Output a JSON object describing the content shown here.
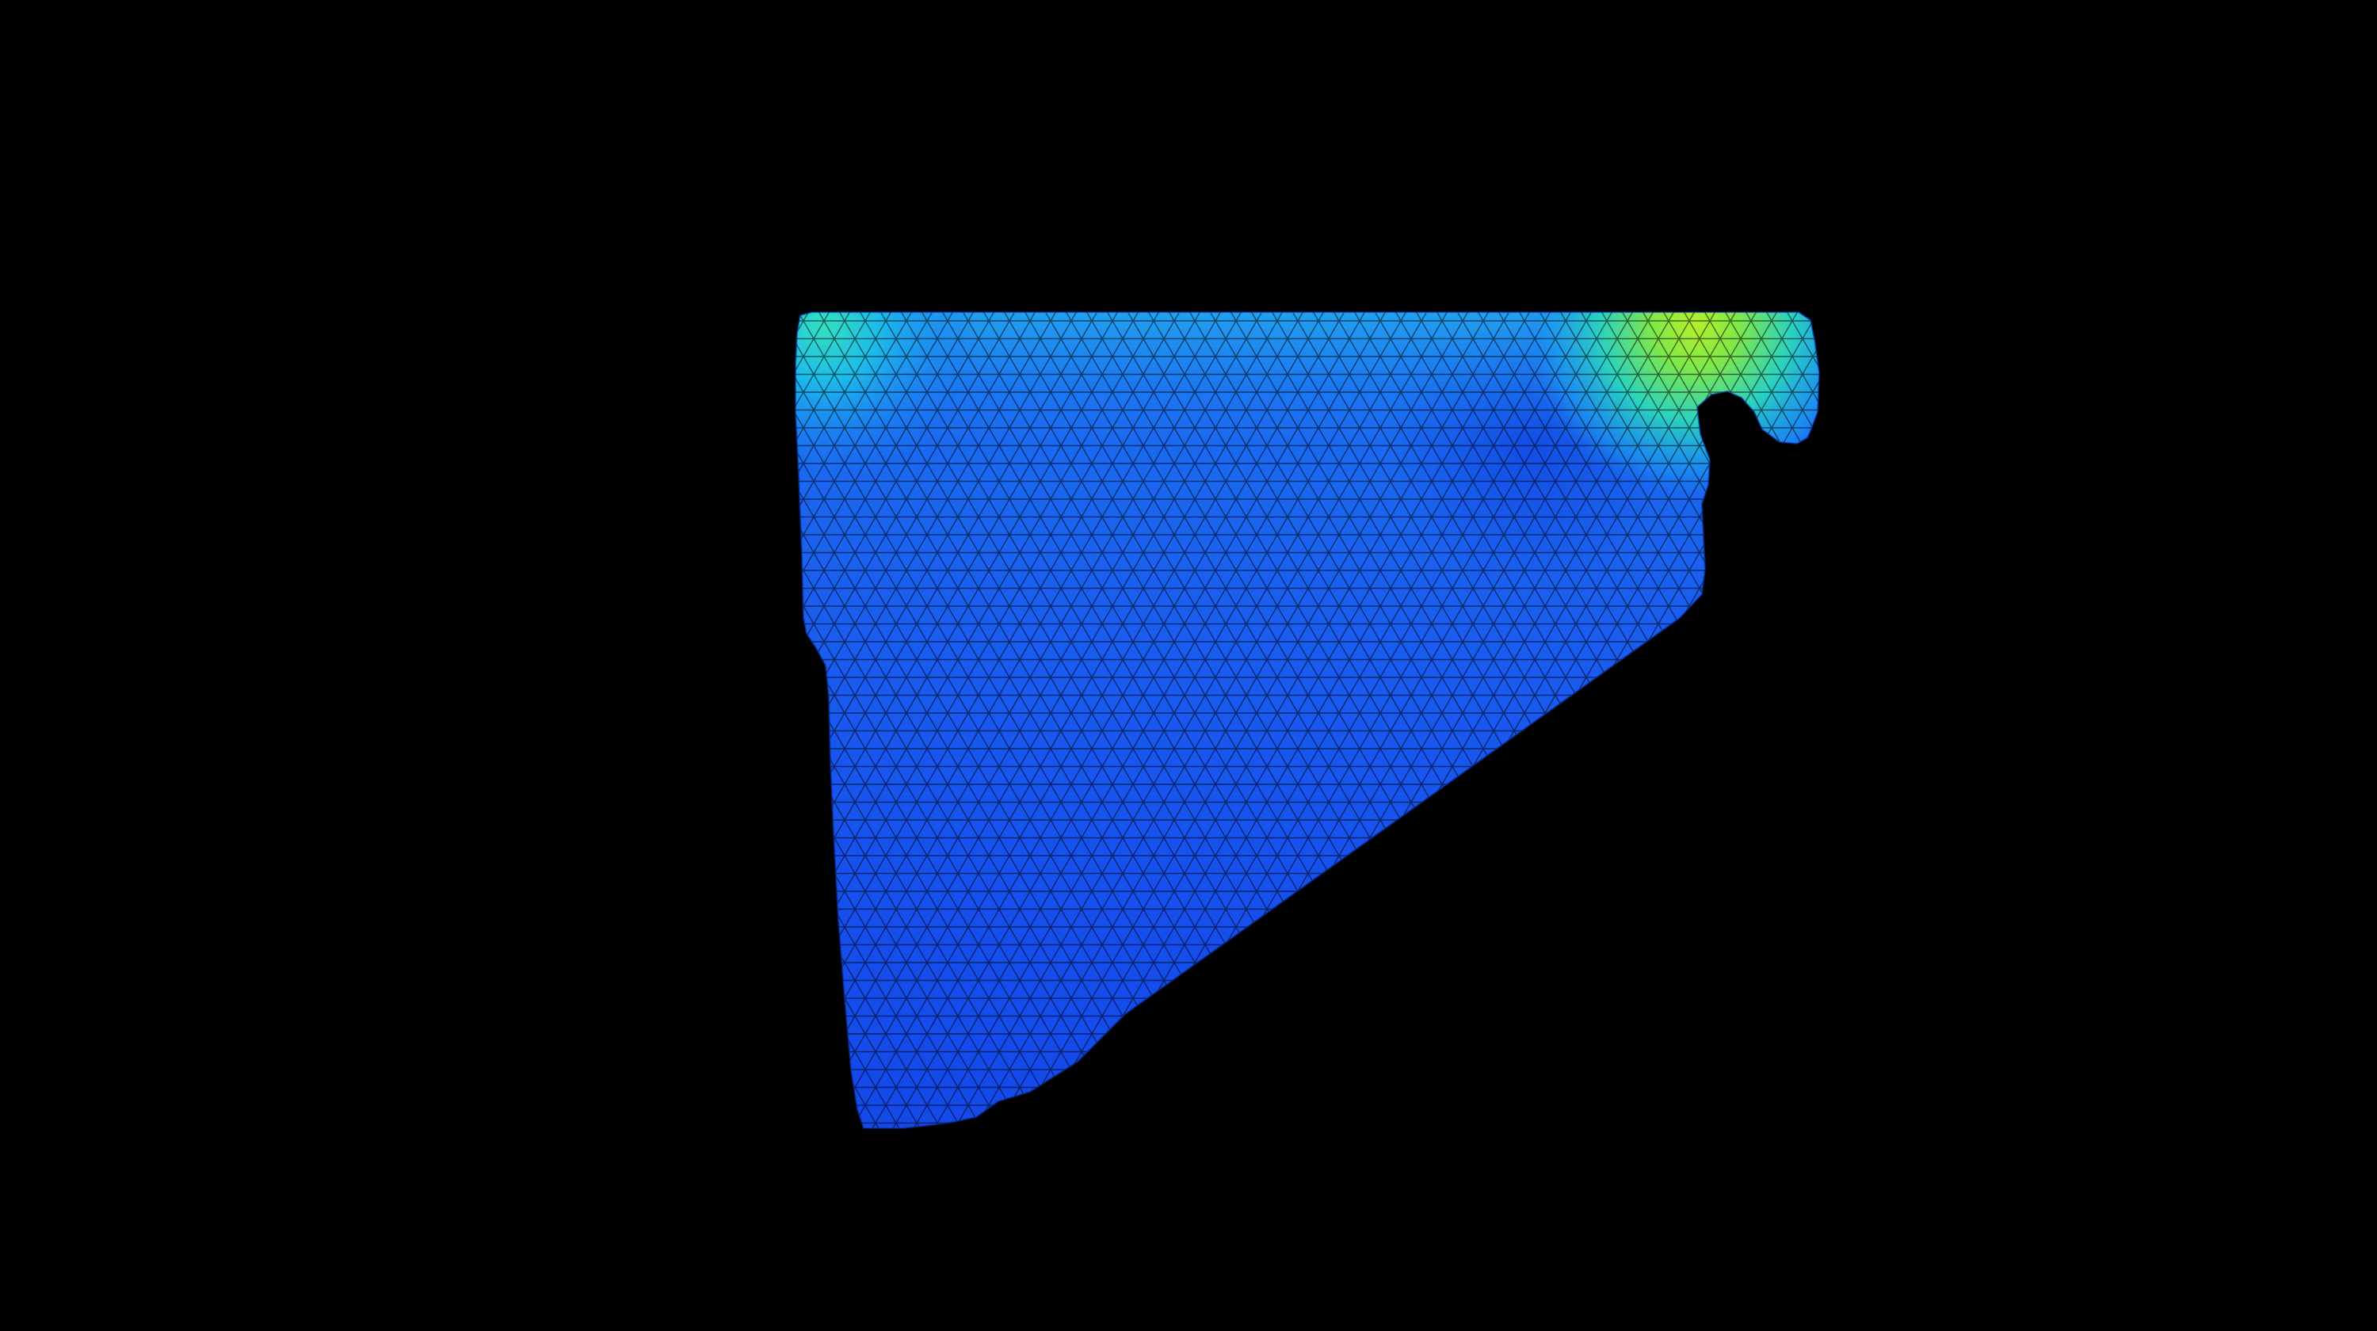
{
  "scene": {
    "background_color": "#000000",
    "object": "triangulated-mesh-with-color-field",
    "colormap": "jet",
    "colormap_stops": [
      "#0000c8",
      "#0050ff",
      "#0096ff",
      "#00d2e6",
      "#46e6a0",
      "#a0f03c",
      "#e6e628"
    ],
    "mesh_line_color": "#000000",
    "dominant_field_color": "#1a5cf0",
    "hotspot_color": "#9ef02a"
  }
}
